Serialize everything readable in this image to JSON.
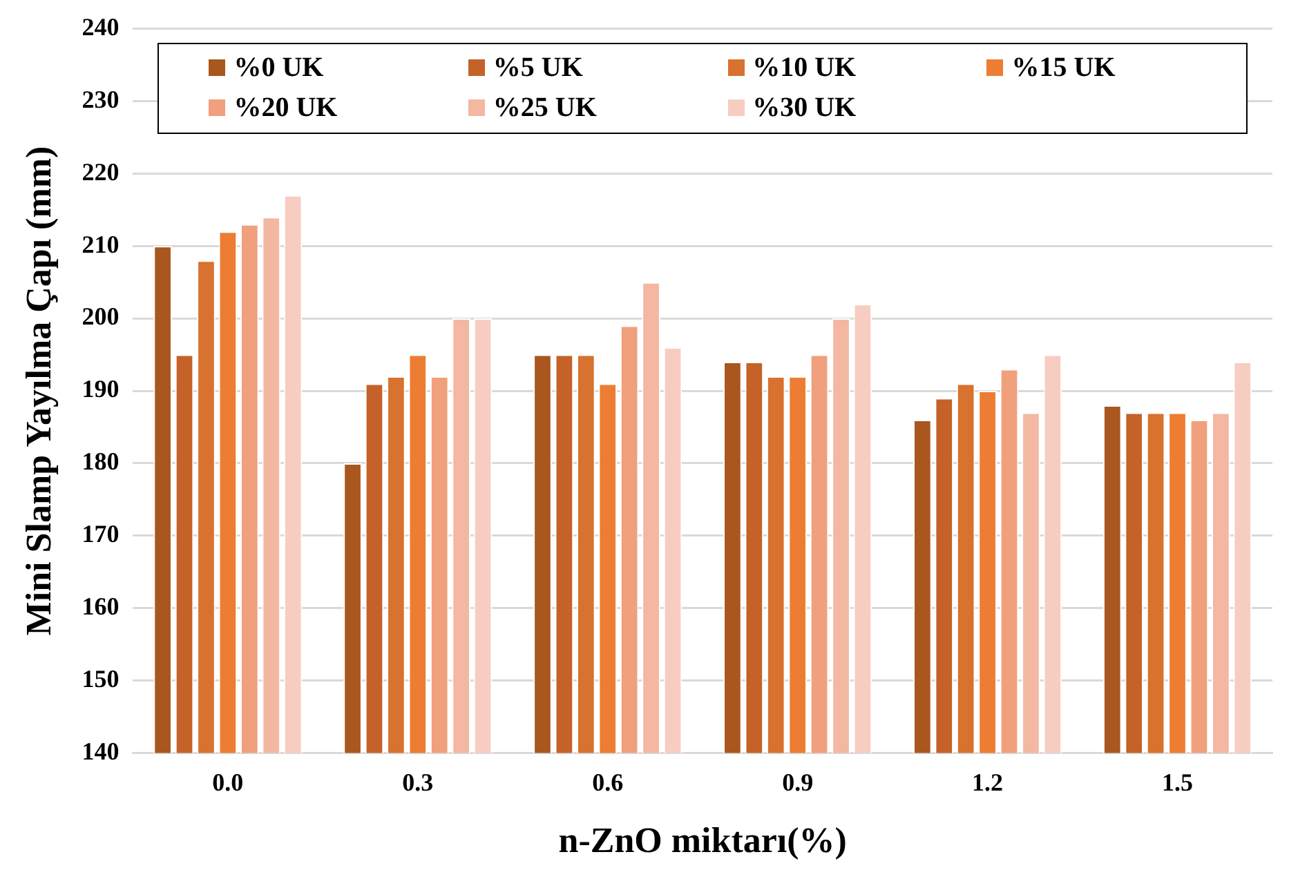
{
  "chart_data": {
    "type": "bar",
    "xlabel": "n-ZnO miktarı(%)",
    "ylabel": "Mini Slamp Yayılma Çapı (mm)",
    "categories": [
      "0.0",
      "0.3",
      "0.6",
      "0.9",
      "1.2",
      "1.5"
    ],
    "series": [
      {
        "name": "%0 UK",
        "color": "#a9561f",
        "values": [
          210,
          180,
          195,
          194,
          186,
          188
        ]
      },
      {
        "name": "%5 UK",
        "color": "#c4622a",
        "values": [
          195,
          191,
          195,
          194,
          189,
          187
        ]
      },
      {
        "name": "%10 UK",
        "color": "#d8722f",
        "values": [
          208,
          192,
          195,
          192,
          191,
          187
        ]
      },
      {
        "name": "%15 UK",
        "color": "#ec7d32",
        "values": [
          212,
          195,
          191,
          192,
          190,
          187
        ]
      },
      {
        "name": "%20 UK",
        "color": "#f0a07c",
        "values": [
          213,
          192,
          199,
          195,
          193,
          186
        ]
      },
      {
        "name": "%25 UK",
        "color": "#f3b7a2",
        "values": [
          214,
          200,
          205,
          200,
          187,
          187
        ]
      },
      {
        "name": "%30 UK",
        "color": "#f8cdc1",
        "values": [
          217,
          200,
          196,
          202,
          195,
          194
        ]
      }
    ],
    "ylim": [
      140,
      240
    ],
    "yticks": [
      140,
      150,
      160,
      170,
      180,
      190,
      200,
      210,
      220,
      230,
      240
    ],
    "grid": "y",
    "legend": "top"
  }
}
